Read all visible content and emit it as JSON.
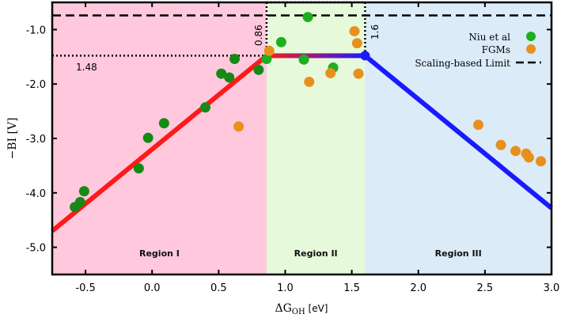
{
  "chart_data": {
    "type": "scatter",
    "xlabel": "ΔG",
    "xlabel_sub": "OH",
    "xlabel_unit": " [eV]",
    "ylabel": "−BI [V]",
    "xlim": [
      -0.75,
      3.0
    ],
    "ylim": [
      -5.5,
      -0.5
    ],
    "xticks": [
      -0.5,
      0.0,
      0.5,
      1.0,
      1.5,
      2.0,
      2.5,
      3.0
    ],
    "xtick_labels": [
      "-0.5",
      "0.0",
      "0.5",
      "1.0",
      "1.5",
      "2.0",
      "2.5",
      "3.0"
    ],
    "yticks": [
      -1.0,
      -2.0,
      -3.0,
      -4.0,
      -5.0
    ],
    "ytick_labels": [
      "-1.0",
      "-2.0",
      "-3.0",
      "-4.0",
      "-5.0"
    ],
    "grid": false,
    "legend_placement": "top-right",
    "regions": [
      {
        "label": "Region I",
        "from": -0.75,
        "to": 0.86,
        "color": "#ffc8dd"
      },
      {
        "label": "Region II",
        "from": 0.86,
        "to": 1.6,
        "color": "#e6fadb"
      },
      {
        "label": "Region III",
        "from": 1.6,
        "to": 3.0,
        "color": "#dcebf8"
      }
    ],
    "annotations": {
      "x_left": "0.86",
      "x_right": "1.6",
      "y_level": "1.48"
    },
    "limit_lines": {
      "scaling_limit_y": -0.74,
      "level_y": -1.48,
      "boundary_left_x": 0.86,
      "boundary_right_x": 1.6
    },
    "volcano": {
      "left": {
        "x": [
          -0.75,
          0.86
        ],
        "y": [
          -4.7,
          -1.48
        ],
        "color": "#ff1a1a"
      },
      "top": {
        "x": [
          0.86,
          1.6
        ],
        "y": [
          -1.48,
          -1.48
        ]
      },
      "right": {
        "x": [
          1.6,
          3.0
        ],
        "y": [
          -1.48,
          -4.28
        ],
        "color": "#1a1aff"
      }
    },
    "series": [
      {
        "name": "Niu et al",
        "color": "#1fae1f",
        "x": [
          -0.58,
          -0.54,
          -0.51,
          -0.1,
          -0.03,
          0.09,
          0.4,
          0.52,
          0.58,
          0.62,
          0.8,
          0.86,
          0.97,
          1.14,
          1.17,
          1.36
        ],
        "y": [
          -4.26,
          -4.17,
          -3.97,
          -3.55,
          -2.99,
          -2.72,
          -2.43,
          -1.81,
          -1.88,
          -1.54,
          -1.74,
          -1.54,
          -1.23,
          -1.55,
          -0.77,
          -1.7
        ]
      },
      {
        "name": "FGMs",
        "color": "#e8901c",
        "x": [
          0.65,
          0.88,
          1.18,
          1.34,
          1.52,
          1.54,
          1.55,
          2.45,
          2.62,
          2.73,
          2.81,
          2.83,
          2.92
        ],
        "y": [
          -2.78,
          -1.39,
          -1.96,
          -1.8,
          -1.03,
          -1.25,
          -1.81,
          -2.75,
          -3.12,
          -3.23,
          -3.28,
          -3.35,
          -3.42
        ]
      }
    ],
    "legend": {
      "items": [
        "Niu et al",
        "FGMs",
        "Scaling-based Limit"
      ]
    }
  }
}
